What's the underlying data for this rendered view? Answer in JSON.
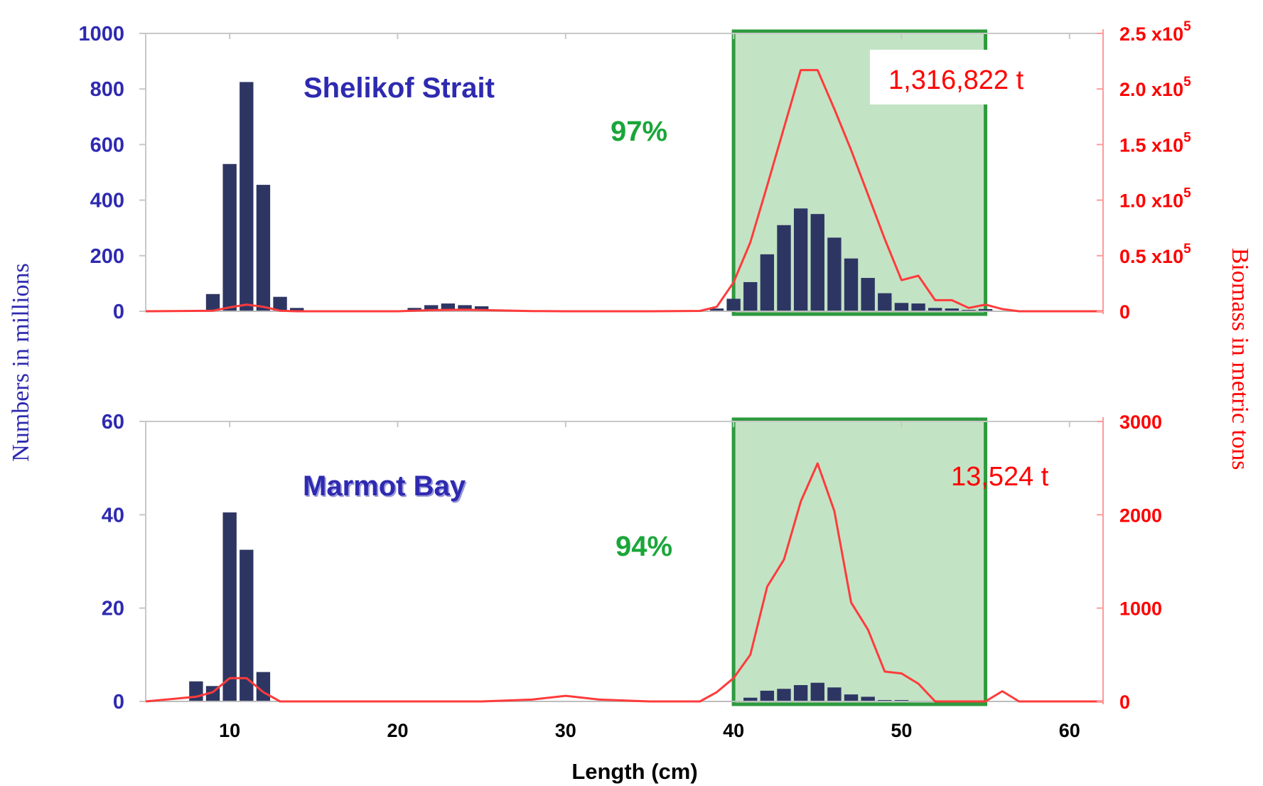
{
  "chart_data": [
    {
      "type": "bar",
      "title": "Shelikof Strait",
      "xlabel": "Length (cm)",
      "ylabel": "Numbers in millions",
      "y2label": "Biomass in metric tons",
      "xlim": [
        5,
        62
      ],
      "ylim": [
        0,
        1000
      ],
      "y2lim": [
        0,
        250000
      ],
      "yticks": [
        "0",
        "200",
        "400",
        "600",
        "800",
        "1000"
      ],
      "y2ticks": [
        {
          "value": 0,
          "mantissa": "0",
          "exp": ""
        },
        {
          "value": 50000,
          "mantissa": "0.5 x10",
          "exp": "5"
        },
        {
          "value": 100000,
          "mantissa": "1.0 x10",
          "exp": "5"
        },
        {
          "value": 150000,
          "mantissa": "1.5 x10",
          "exp": "5"
        },
        {
          "value": 200000,
          "mantissa": "2.0 x10",
          "exp": "5"
        },
        {
          "value": 250000,
          "mantissa": "2.5 x10",
          "exp": "5"
        }
      ],
      "highlight": {
        "x_range": [
          40,
          55
        ],
        "label": "97%",
        "color": "#1aa63a"
      },
      "total_biomass": "1,316,822 t",
      "series": [
        {
          "name": "Numbers",
          "kind": "bar",
          "axis": "left",
          "color": "#2d3663",
          "x": [
            9,
            10,
            11,
            12,
            13,
            14,
            21,
            22,
            23,
            24,
            25,
            39,
            40,
            41,
            42,
            43,
            44,
            45,
            46,
            47,
            48,
            49,
            50,
            51,
            52,
            53,
            54,
            55
          ],
          "values": [
            62,
            530,
            825,
            455,
            52,
            12,
            12,
            22,
            28,
            22,
            18,
            10,
            45,
            105,
            205,
            310,
            370,
            350,
            265,
            190,
            120,
            65,
            30,
            28,
            12,
            10,
            5,
            8
          ]
        },
        {
          "name": "Biomass",
          "kind": "line",
          "axis": "right",
          "color": "#ff3b3b",
          "x": [
            5,
            9,
            10,
            11,
            12,
            13,
            14,
            20,
            22,
            24,
            26,
            28,
            30,
            35,
            38,
            39,
            40,
            41,
            42,
            43,
            44,
            45,
            46,
            47,
            48,
            49,
            50,
            51,
            52,
            53,
            54,
            55,
            56,
            57,
            62
          ],
          "values": [
            0,
            500,
            3500,
            6000,
            4000,
            500,
            0,
            0,
            1000,
            1500,
            800,
            200,
            0,
            0,
            300,
            4000,
            26000,
            62000,
            113000,
            165000,
            217000,
            217000,
            182000,
            145000,
            105000,
            65000,
            28000,
            32000,
            10000,
            10000,
            3000,
            6000,
            2000,
            0,
            0
          ]
        }
      ]
    },
    {
      "type": "bar",
      "title": "Marmot Bay",
      "xlabel": "Length (cm)",
      "ylabel": "Numbers in millions",
      "y2label": "Biomass in metric tons",
      "xlim": [
        5,
        62
      ],
      "ylim": [
        0,
        60
      ],
      "y2lim": [
        0,
        3000
      ],
      "yticks": [
        "0",
        "20",
        "40",
        "60"
      ],
      "xticks": [
        "10",
        "20",
        "30",
        "40",
        "50",
        "60"
      ],
      "y2ticks": [
        {
          "value": 0,
          "mantissa": "0",
          "exp": ""
        },
        {
          "value": 1000,
          "mantissa": "1000",
          "exp": ""
        },
        {
          "value": 2000,
          "mantissa": "2000",
          "exp": ""
        },
        {
          "value": 3000,
          "mantissa": "3000",
          "exp": ""
        }
      ],
      "highlight": {
        "x_range": [
          40,
          55
        ],
        "label": "94%",
        "color": "#1aa63a"
      },
      "total_biomass": "13,524 t",
      "series": [
        {
          "name": "Numbers",
          "kind": "bar",
          "axis": "left",
          "color": "#2d3663",
          "x": [
            8,
            9,
            10,
            11,
            12,
            41,
            42,
            43,
            44,
            45,
            46,
            47,
            48,
            49,
            50
          ],
          "values": [
            4.3,
            3.3,
            40.5,
            32.5,
            6.3,
            0.8,
            2.3,
            2.7,
            3.5,
            4.0,
            3.0,
            1.5,
            1.0,
            0.3,
            0.3
          ]
        },
        {
          "name": "Biomass",
          "kind": "line",
          "axis": "right",
          "color": "#ff3b3b",
          "x": [
            5,
            8,
            9,
            10,
            11,
            12,
            13,
            14,
            20,
            25,
            28,
            30,
            32,
            35,
            38,
            39,
            40,
            41,
            42,
            43,
            44,
            45,
            46,
            47,
            48,
            49,
            50,
            51,
            52,
            53,
            55,
            56,
            57,
            62
          ],
          "values": [
            0,
            50,
            100,
            250,
            250,
            100,
            0,
            0,
            0,
            0,
            20,
            60,
            20,
            0,
            0,
            100,
            250,
            500,
            1230,
            1520,
            2140,
            2550,
            2040,
            1060,
            770,
            320,
            300,
            190,
            0,
            0,
            0,
            110,
            0,
            0
          ]
        }
      ]
    }
  ]
}
